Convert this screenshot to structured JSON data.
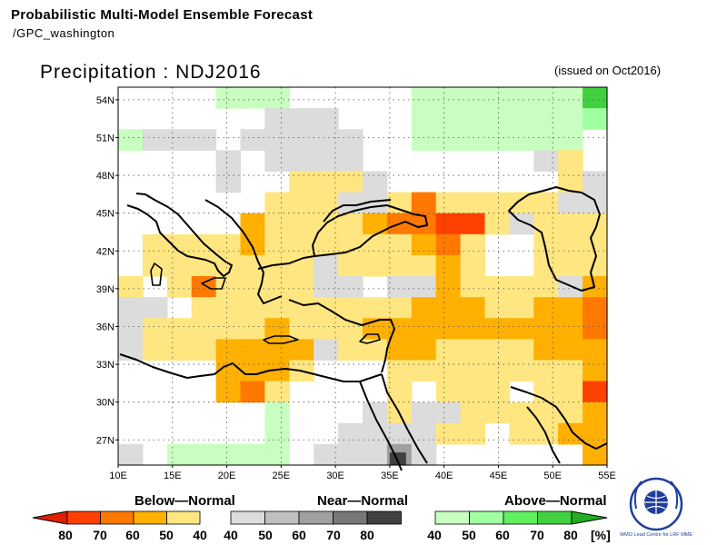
{
  "header": {
    "title": "Probabilistic Multi-Model Ensemble Forecast",
    "subtitle": "/GPC_washington",
    "main_title": "Precipitation : NDJ2016",
    "issued": "(issued on Oct2016)"
  },
  "map": {
    "lon_range": [
      10,
      55
    ],
    "lat_range": [
      25,
      55
    ],
    "lat_ticks": [
      "54N",
      "51N",
      "48N",
      "45N",
      "42N",
      "39N",
      "36N",
      "33N",
      "30N",
      "27N"
    ],
    "lat_tick_values": [
      54,
      51,
      48,
      45,
      42,
      39,
      36,
      33,
      30,
      27
    ],
    "lon_ticks": [
      "10E",
      "15E",
      "20E",
      "25E",
      "30E",
      "35E",
      "40E",
      "45E",
      "50E",
      "55E"
    ],
    "lon_tick_values": [
      10,
      15,
      20,
      25,
      30,
      35,
      40,
      45,
      50,
      55
    ],
    "grid_dotted": true,
    "colors": {
      "B40": "#ffe680",
      "B50": "#ffb000",
      "B60": "#ff7800",
      "B70": "#ff4000",
      "B80": "#e02000",
      "N40": "#dcdcdc",
      "N50": "#c0c0c0",
      "N60": "#a0a0a0",
      "N70": "#787878",
      "N80": "#404040",
      "A40": "#c8ffc0",
      "A50": "#a0ffa0",
      "A60": "#60f060",
      "A70": "#40d040",
      "A80": "#20b020"
    }
  },
  "legend": {
    "below": {
      "label": "Below—Normal",
      "ticks": [
        "80",
        "70",
        "60",
        "50",
        "40"
      ],
      "colors": [
        "#e02000",
        "#ff4000",
        "#ff7800",
        "#ffb000",
        "#ffe680"
      ]
    },
    "near": {
      "label": "Near—Normal",
      "ticks": [
        "40",
        "50",
        "60",
        "70",
        "80"
      ],
      "colors": [
        "#dcdcdc",
        "#c0c0c0",
        "#a0a0a0",
        "#787878",
        "#404040"
      ]
    },
    "above": {
      "label": "Above—Normal",
      "ticks": [
        "40",
        "50",
        "60",
        "70",
        "80"
      ],
      "colors": [
        "#c8ffc0",
        "#a0ffa0",
        "#60f060",
        "#40d040",
        "#20b020"
      ]
    },
    "unit": "[%]"
  },
  "logo": {
    "caption": "WMO Lead Centre for LRF MME"
  }
}
